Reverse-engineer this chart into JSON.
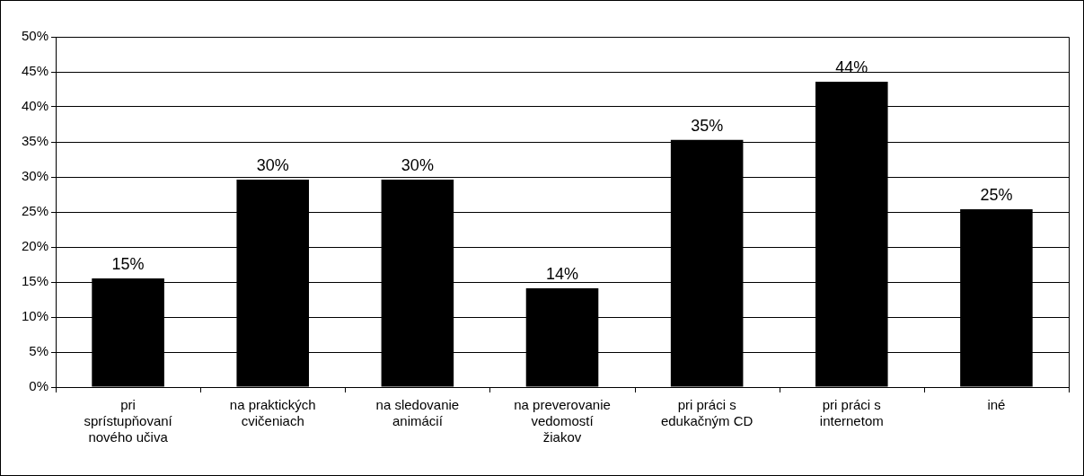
{
  "chart_data": {
    "type": "bar",
    "categories": [
      "pri sprístupňovaní nového učiva",
      "na praktických cvičeniach",
      "na sledovanie animácií",
      "na preverovanie vedomostí žiakov",
      "pri práci s edukačným CD",
      "pri práci s internetom",
      "iné"
    ],
    "values": [
      15.5,
      29.6,
      29.6,
      14.1,
      35.3,
      43.6,
      25.4
    ],
    "color": "#000000",
    "value_labels": [
      "15%",
      "30%",
      "30%",
      "14%",
      "35%",
      "44%",
      "25%"
    ],
    "ylim": [
      0,
      50
    ],
    "yticks": [
      {
        "value": 0,
        "label": "0%"
      },
      {
        "value": 5,
        "label": "5%"
      },
      {
        "value": 10,
        "label": "10%"
      },
      {
        "value": 15,
        "label": "15%"
      },
      {
        "value": 20,
        "label": "20%"
      },
      {
        "value": 25,
        "label": "25%"
      },
      {
        "value": 30,
        "label": "30%"
      },
      {
        "value": 35,
        "label": "35%"
      },
      {
        "value": 40,
        "label": "40%"
      },
      {
        "value": 45,
        "label": "45%"
      },
      {
        "value": 50,
        "label": "50%"
      }
    ],
    "grid": "y"
  }
}
